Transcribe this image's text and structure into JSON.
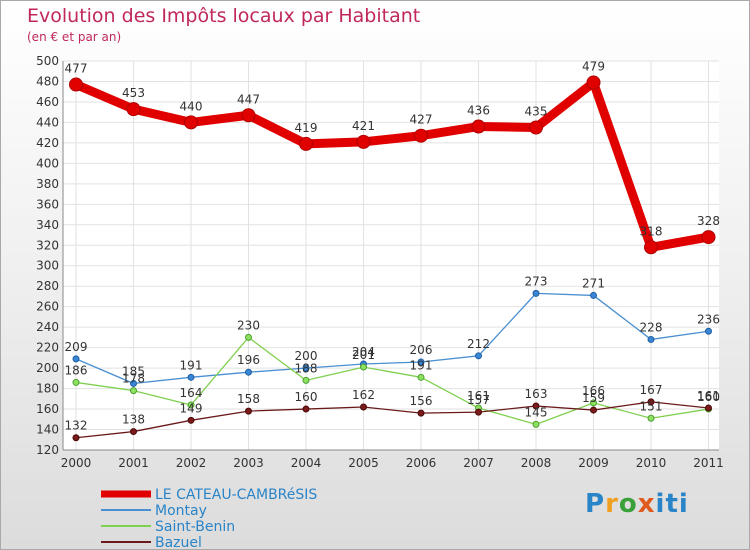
{
  "chart_data": {
    "type": "line",
    "title": "Evolution des Impôts locaux par Habitant",
    "subtitle": "(en € et par an)",
    "xlabel": "",
    "ylabel": "",
    "ylim": [
      120,
      500
    ],
    "ytick_step": 20,
    "grid": true,
    "legend_position": "bottom-left",
    "categories": [
      "2000",
      "2001",
      "2002",
      "2003",
      "2004",
      "2005",
      "2006",
      "2007",
      "2008",
      "2009",
      "2010",
      "2011"
    ],
    "series": [
      {
        "name": "LE CATEAU-CAMBRéSIS",
        "color": "#e00000",
        "values": [
          477,
          453,
          440,
          447,
          419,
          421,
          427,
          436,
          435,
          479,
          318,
          328
        ]
      },
      {
        "name": "Montay",
        "color": "#4a8fd0",
        "values": [
          209,
          185,
          191,
          196,
          200,
          204,
          206,
          212,
          273,
          271,
          228,
          236
        ]
      },
      {
        "name": "Saint-Benin",
        "color": "#80d050",
        "values": [
          186,
          178,
          164,
          230,
          188,
          201,
          191,
          161,
          145,
          166,
          151,
          160
        ]
      },
      {
        "name": "Bazuel",
        "color": "#6a1a1a",
        "values": [
          132,
          138,
          149,
          158,
          160,
          162,
          156,
          157,
          163,
          159,
          167,
          161
        ]
      }
    ]
  },
  "logo": {
    "letters": [
      "P",
      "r",
      "o",
      "x",
      "iti"
    ]
  }
}
